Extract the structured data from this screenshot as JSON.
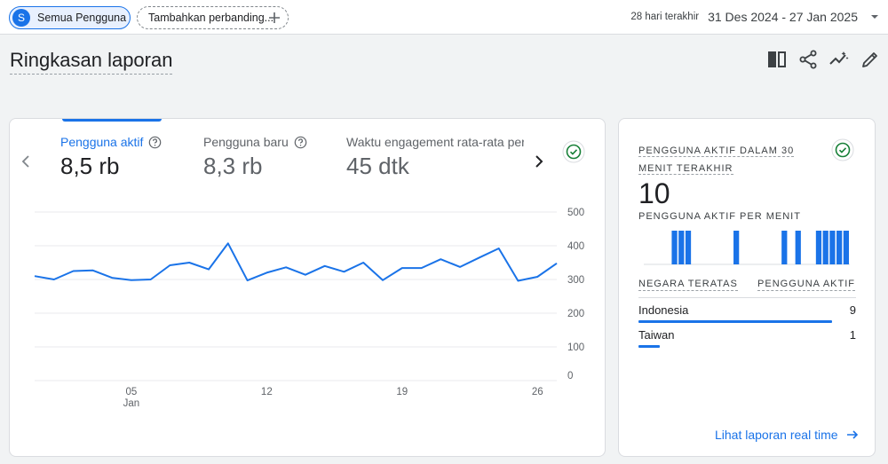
{
  "topbar": {
    "segment": {
      "avatar_letter": "S",
      "label": "Semua Pengguna"
    },
    "compare": {
      "label": "Tambahkan perbanding..."
    },
    "date_range": {
      "label": "28 hari terakhir",
      "value": "31 Des 2024 - 27 Jan 2025"
    }
  },
  "page": {
    "title": "Ringkasan laporan"
  },
  "header_icons": [
    "compare-columns-icon",
    "share-icon",
    "insights-icon",
    "edit-icon"
  ],
  "metrics": [
    {
      "label": "Pengguna aktif",
      "value": "8,5 rb",
      "active": true
    },
    {
      "label": "Pengguna baru",
      "value": "8,3 rb",
      "active": false
    },
    {
      "label": "Waktu engagement rata-rata per",
      "value": "45 dtk",
      "active": false
    }
  ],
  "chart_data": {
    "type": "line",
    "series": [
      {
        "values": [
          310,
          300,
          325,
          327,
          305,
          298,
          300,
          342,
          350,
          330,
          407,
          297,
          320,
          336,
          314,
          340,
          323,
          350,
          298,
          334,
          334,
          360,
          337,
          365,
          392,
          296,
          308,
          348
        ]
      }
    ],
    "x_ticks": [
      {
        "label": "05",
        "sublabel": "Jan",
        "index": 5
      },
      {
        "label": "12",
        "sublabel": "",
        "index": 12
      },
      {
        "label": "19",
        "sublabel": "",
        "index": 19
      },
      {
        "label": "26",
        "sublabel": "",
        "index": 26
      }
    ],
    "y_ticks": [
      500,
      400,
      300,
      200,
      100,
      0
    ],
    "ylim": [
      0,
      500
    ],
    "grid": true,
    "color": "#1a73e8"
  },
  "realtime": {
    "title": "PENGGUNA AKTIF DALAM 30 MENIT TERAKHIR",
    "value": "10",
    "subtitle": "PENGGUNA AKTIF PER MENIT",
    "per_minute": [
      0,
      0,
      0,
      0,
      1,
      1,
      1,
      0,
      0,
      0,
      0,
      0,
      0,
      1,
      0,
      0,
      0,
      0,
      0,
      0,
      1,
      0,
      1,
      0,
      0,
      1,
      1,
      1,
      1,
      1
    ],
    "col_country": "NEGARA TERATAS",
    "col_users": "PENGGUNA AKTIF",
    "countries": [
      {
        "name": "Indonesia",
        "count": "9",
        "share": 0.9
      },
      {
        "name": "Taiwan",
        "count": "1",
        "share": 0.1
      }
    ],
    "link": "Lihat laporan real time"
  },
  "colors": {
    "accent": "#1a73e8",
    "check": "#188038"
  }
}
